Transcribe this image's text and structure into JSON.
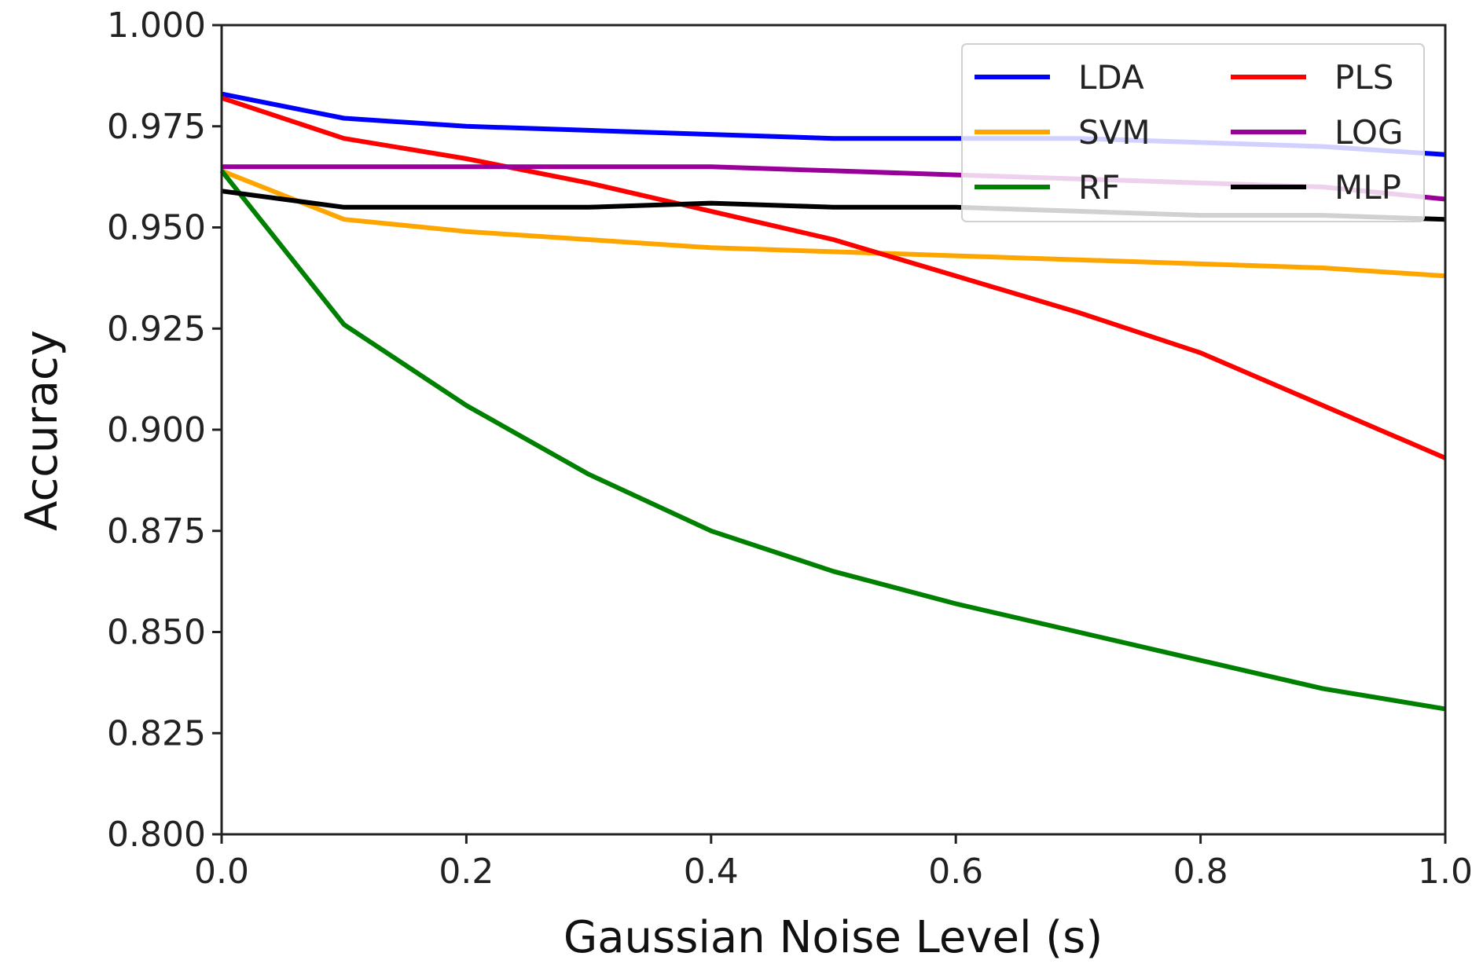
{
  "chart_data": {
    "type": "line",
    "title": "",
    "xlabel": "Gaussian Noise Level (s)",
    "ylabel": "Accuracy",
    "xlim": [
      0.0,
      1.0
    ],
    "ylim": [
      0.8,
      1.0
    ],
    "xticks": [
      "0.0",
      "0.2",
      "0.4",
      "0.6",
      "0.8",
      "1.0"
    ],
    "yticks": [
      "0.800",
      "0.825",
      "0.850",
      "0.875",
      "0.900",
      "0.925",
      "0.950",
      "0.975",
      "1.000"
    ],
    "grid": false,
    "legend_position": "top-right",
    "x": [
      0.0,
      0.1,
      0.2,
      0.3,
      0.4,
      0.5,
      0.6,
      0.7,
      0.8,
      0.9,
      1.0
    ],
    "series": [
      {
        "name": "LDA",
        "color": "#0000ff",
        "values": [
          0.983,
          0.977,
          0.975,
          0.974,
          0.973,
          0.972,
          0.972,
          0.972,
          0.971,
          0.97,
          0.968
        ]
      },
      {
        "name": "SVM",
        "color": "#ffa500",
        "values": [
          0.964,
          0.952,
          0.949,
          0.947,
          0.945,
          0.944,
          0.943,
          0.942,
          0.941,
          0.94,
          0.938
        ]
      },
      {
        "name": "RF",
        "color": "#008000",
        "values": [
          0.964,
          0.926,
          0.906,
          0.889,
          0.875,
          0.865,
          0.857,
          0.85,
          0.843,
          0.836,
          0.831
        ]
      },
      {
        "name": "PLS",
        "color": "#ff0000",
        "values": [
          0.982,
          0.972,
          0.967,
          0.961,
          0.954,
          0.947,
          0.938,
          0.929,
          0.919,
          0.906,
          0.893
        ]
      },
      {
        "name": "LOG",
        "color": "#990099",
        "values": [
          0.965,
          0.965,
          0.965,
          0.965,
          0.965,
          0.964,
          0.963,
          0.962,
          0.961,
          0.96,
          0.957
        ]
      },
      {
        "name": "MLP",
        "color": "#000000",
        "values": [
          0.959,
          0.955,
          0.955,
          0.955,
          0.956,
          0.955,
          0.955,
          0.954,
          0.953,
          0.953,
          0.952
        ]
      }
    ]
  }
}
